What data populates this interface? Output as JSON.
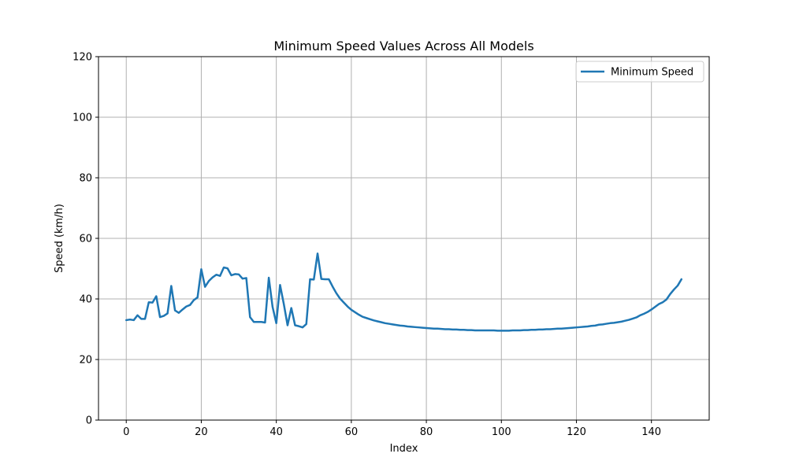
{
  "chart_data": {
    "type": "line",
    "title": "Minimum Speed Values Across All Models",
    "xlabel": "Index",
    "ylabel": "Speed (km/h)",
    "xlim": [
      -7.4,
      155.4
    ],
    "ylim": [
      0,
      120
    ],
    "xticks": [
      0,
      20,
      40,
      60,
      80,
      100,
      120,
      140
    ],
    "yticks": [
      0,
      20,
      40,
      60,
      80,
      100,
      120
    ],
    "grid": true,
    "legend_position": "top-right",
    "series": [
      {
        "name": "Minimum Speed",
        "color": "#1f77b4",
        "x": [
          0,
          1,
          2,
          3,
          4,
          5,
          6,
          7,
          8,
          9,
          10,
          11,
          12,
          13,
          14,
          15,
          16,
          17,
          18,
          19,
          20,
          21,
          22,
          23,
          24,
          25,
          26,
          27,
          28,
          29,
          30,
          31,
          32,
          33,
          34,
          35,
          36,
          37,
          38,
          39,
          40,
          41,
          42,
          43,
          44,
          45,
          46,
          47,
          48,
          49,
          50,
          51,
          52,
          53,
          54,
          55,
          56,
          57,
          58,
          59,
          60,
          61,
          62,
          63,
          64,
          65,
          66,
          67,
          68,
          69,
          70,
          71,
          72,
          73,
          74,
          75,
          76,
          77,
          78,
          79,
          80,
          81,
          82,
          83,
          84,
          85,
          86,
          87,
          88,
          89,
          90,
          91,
          92,
          93,
          94,
          95,
          96,
          97,
          98,
          99,
          100,
          101,
          102,
          103,
          104,
          105,
          106,
          107,
          108,
          109,
          110,
          111,
          112,
          113,
          114,
          115,
          116,
          117,
          118,
          119,
          120,
          121,
          122,
          123,
          124,
          125,
          126,
          127,
          128,
          129,
          130,
          131,
          132,
          133,
          134,
          135,
          136,
          137,
          138,
          139,
          140,
          141,
          142,
          143,
          144,
          145,
          146,
          147,
          148
        ],
        "values": [
          33.0,
          33.2,
          33.0,
          34.6,
          33.4,
          33.4,
          38.9,
          38.8,
          40.9,
          34.0,
          34.4,
          35.2,
          44.3,
          36.2,
          35.4,
          36.5,
          37.5,
          38.0,
          39.6,
          40.5,
          49.8,
          44.0,
          45.9,
          47.1,
          48.0,
          47.6,
          50.4,
          50.1,
          47.8,
          48.2,
          48.1,
          46.7,
          46.9,
          34.0,
          32.4,
          32.4,
          32.4,
          32.2,
          47.0,
          37.4,
          32.0,
          44.6,
          38.3,
          31.3,
          37.0,
          31.3,
          31.0,
          30.6,
          31.7,
          46.5,
          46.4,
          55.0,
          46.6,
          46.5,
          46.5,
          44.1,
          41.9,
          40.1,
          38.8,
          37.5,
          36.4,
          35.6,
          34.8,
          34.1,
          33.7,
          33.3,
          32.9,
          32.6,
          32.3,
          32.0,
          31.8,
          31.6,
          31.4,
          31.2,
          31.1,
          30.9,
          30.8,
          30.7,
          30.6,
          30.5,
          30.4,
          30.3,
          30.2,
          30.2,
          30.1,
          30.0,
          30.0,
          29.9,
          29.9,
          29.8,
          29.8,
          29.7,
          29.7,
          29.6,
          29.6,
          29.6,
          29.6,
          29.6,
          29.6,
          29.5,
          29.5,
          29.5,
          29.5,
          29.6,
          29.6,
          29.6,
          29.7,
          29.7,
          29.8,
          29.8,
          29.9,
          29.9,
          30.0,
          30.0,
          30.1,
          30.2,
          30.2,
          30.3,
          30.4,
          30.5,
          30.6,
          30.7,
          30.8,
          30.9,
          31.1,
          31.2,
          31.5,
          31.6,
          31.8,
          32.0,
          32.1,
          32.3,
          32.5,
          32.8,
          33.1,
          33.5,
          33.9,
          34.6,
          35.1,
          35.7,
          36.5,
          37.4,
          38.3,
          38.9,
          39.8,
          41.6,
          43.1,
          44.4,
          46.5
        ]
      }
    ]
  }
}
